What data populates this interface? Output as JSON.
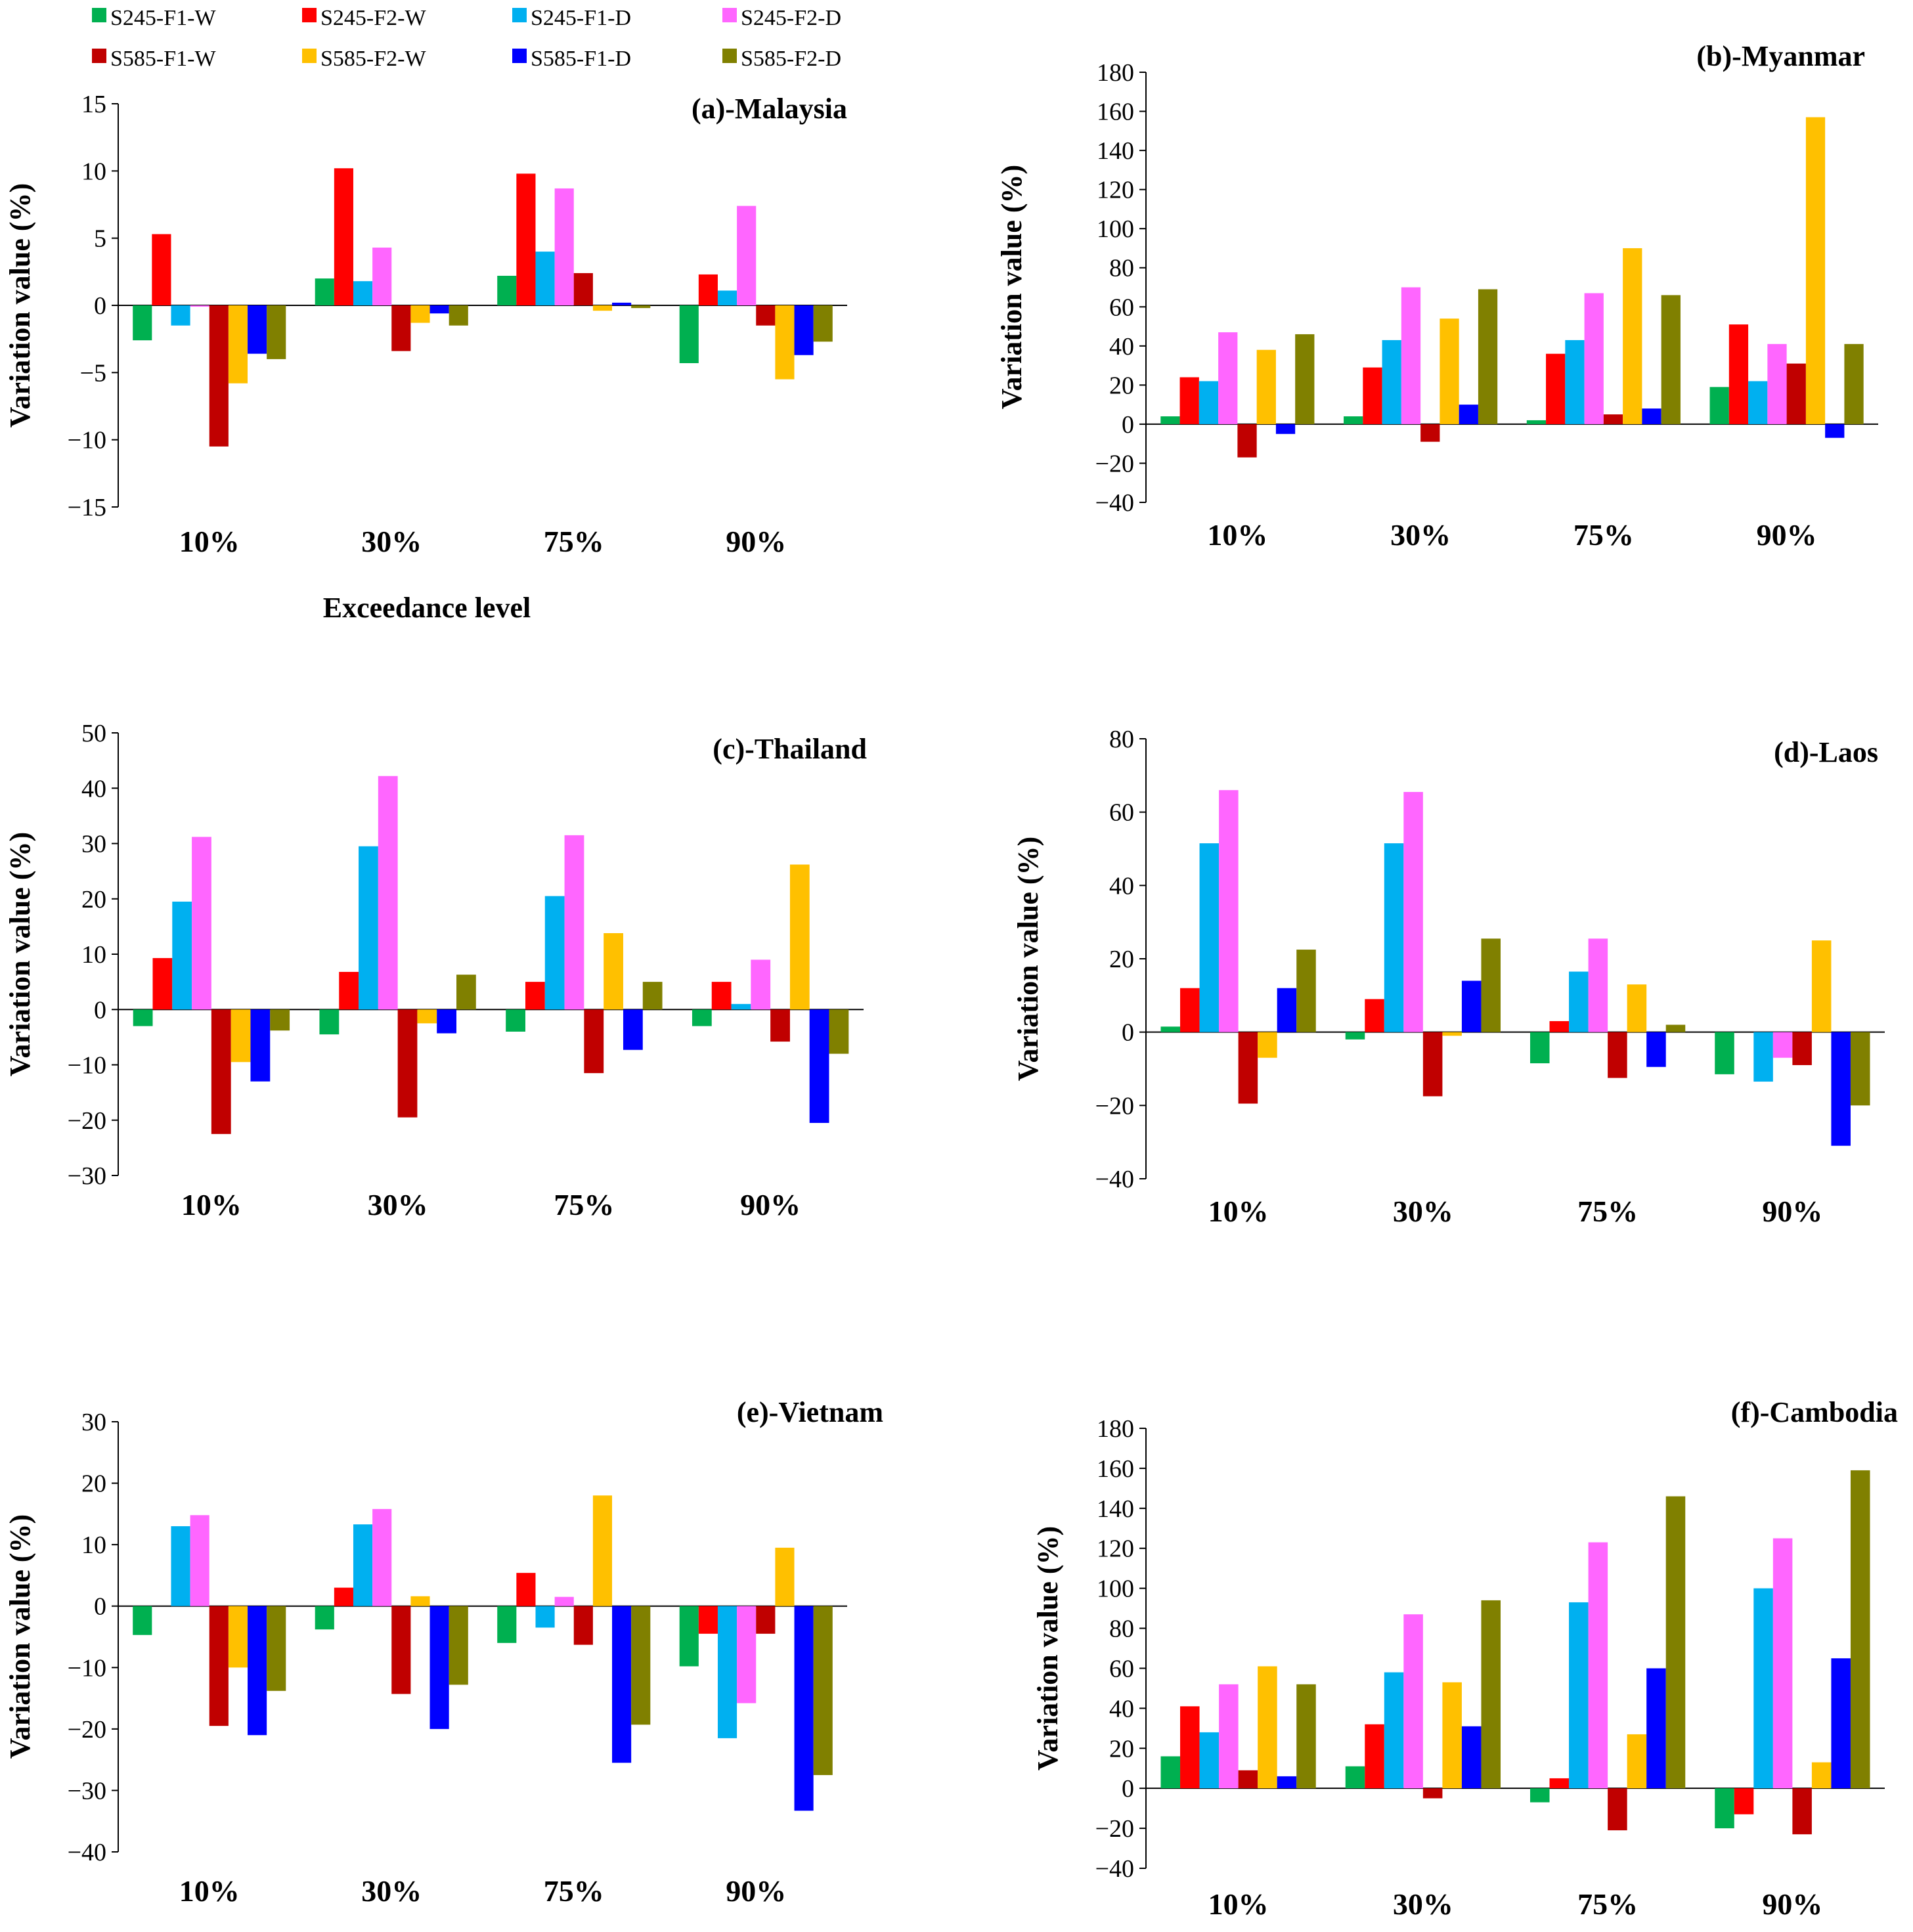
{
  "legend": [
    {
      "name": "S245-F1-W",
      "color": "#00b050"
    },
    {
      "name": "S245-F2-W",
      "color": "#ff0000"
    },
    {
      "name": "S245-F1-D",
      "color": "#00b0f0"
    },
    {
      "name": "S245-F2-D",
      "color": "#ff66ff"
    },
    {
      "name": "S585-F1-W",
      "color": "#c00000"
    },
    {
      "name": "S585-F2-W",
      "color": "#ffc000"
    },
    {
      "name": "S585-F1-D",
      "color": "#0000ff"
    },
    {
      "name": "S585-F2-D",
      "color": "#808000"
    }
  ],
  "chart_data": [
    {
      "type": "bar",
      "title": "(a)-Malaysia",
      "xlabel": "Exceedance level",
      "ylabel": "Variation value (%)",
      "ylim": [
        -15,
        15
      ],
      "yticks": [
        -15,
        -10,
        -5,
        0,
        5,
        10,
        15
      ],
      "categories": [
        "10%",
        "30%",
        "75%",
        "90%"
      ],
      "series": [
        {
          "name": "S245-F1-W",
          "values": [
            -2.6,
            2.0,
            2.2,
            -4.3
          ]
        },
        {
          "name": "S245-F2-W",
          "values": [
            5.3,
            10.2,
            9.8,
            2.3
          ]
        },
        {
          "name": "S245-F1-D",
          "values": [
            -1.5,
            1.8,
            4.0,
            1.1
          ]
        },
        {
          "name": "S245-F2-D",
          "values": [
            -0.1,
            4.3,
            8.7,
            7.4
          ]
        },
        {
          "name": "S585-F1-W",
          "values": [
            -10.5,
            -3.4,
            2.4,
            -1.5
          ]
        },
        {
          "name": "S585-F2-W",
          "values": [
            -5.8,
            -1.3,
            -0.4,
            -5.5
          ]
        },
        {
          "name": "S585-F1-D",
          "values": [
            -3.6,
            -0.6,
            0.2,
            -3.7
          ]
        },
        {
          "name": "S585-F2-D",
          "values": [
            -4.0,
            -1.5,
            -0.2,
            -2.7
          ]
        }
      ]
    },
    {
      "type": "bar",
      "title": "(b)-Myanmar",
      "xlabel": "",
      "ylabel": "Variation value (%)",
      "ylim": [
        -40,
        180
      ],
      "yticks": [
        -40,
        -20,
        0,
        20,
        40,
        60,
        80,
        100,
        120,
        140,
        160,
        180
      ],
      "categories": [
        "10%",
        "30%",
        "75%",
        "90%"
      ],
      "series": [
        {
          "name": "S245-F1-W",
          "values": [
            4,
            4,
            2,
            19
          ]
        },
        {
          "name": "S245-F2-W",
          "values": [
            24,
            29,
            36,
            51
          ]
        },
        {
          "name": "S245-F1-D",
          "values": [
            22,
            43,
            43,
            22
          ]
        },
        {
          "name": "S245-F2-D",
          "values": [
            47,
            70,
            67,
            41
          ]
        },
        {
          "name": "S585-F1-W",
          "values": [
            -17,
            -9,
            5,
            31
          ]
        },
        {
          "name": "S585-F2-W",
          "values": [
            38,
            54,
            90,
            157
          ]
        },
        {
          "name": "S585-F1-D",
          "values": [
            -5,
            10,
            8,
            -7
          ]
        },
        {
          "name": "S585-F2-D",
          "values": [
            46,
            69,
            66,
            41
          ]
        }
      ]
    },
    {
      "type": "bar",
      "title": "(c)-Thailand",
      "xlabel": "",
      "ylabel": "Variation value (%)",
      "ylim": [
        -30,
        50
      ],
      "yticks": [
        -30,
        -20,
        -10,
        0,
        10,
        20,
        30,
        40,
        50
      ],
      "categories": [
        "10%",
        "30%",
        "75%",
        "90%"
      ],
      "series": [
        {
          "name": "S245-F1-W",
          "values": [
            -3,
            -4.5,
            -4,
            -3
          ]
        },
        {
          "name": "S245-F2-W",
          "values": [
            9.3,
            6.8,
            5.0,
            5.0
          ]
        },
        {
          "name": "S245-F1-D",
          "values": [
            19.5,
            29.5,
            20.5,
            1.0
          ]
        },
        {
          "name": "S245-F2-D",
          "values": [
            31.2,
            42.2,
            31.5,
            9.0
          ]
        },
        {
          "name": "S585-F1-W",
          "values": [
            -22.5,
            -19.5,
            -11.5,
            -5.8
          ]
        },
        {
          "name": "S585-F2-W",
          "values": [
            -9.5,
            -2.5,
            13.8,
            26.2
          ]
        },
        {
          "name": "S585-F1-D",
          "values": [
            -13.0,
            -4.3,
            -7.3,
            -20.5
          ]
        },
        {
          "name": "S585-F2-D",
          "values": [
            -3.8,
            6.3,
            5.0,
            -8.0
          ]
        }
      ]
    },
    {
      "type": "bar",
      "title": "(d)-Laos",
      "xlabel": "",
      "ylabel": "Variation value (%)",
      "ylim": [
        -40,
        80
      ],
      "yticks": [
        -40,
        -20,
        0,
        20,
        40,
        60,
        80
      ],
      "categories": [
        "10%",
        "30%",
        "75%",
        "90%"
      ],
      "series": [
        {
          "name": "S245-F1-W",
          "values": [
            1.5,
            -2,
            -8.5,
            -11.5
          ]
        },
        {
          "name": "S245-F2-W",
          "values": [
            12,
            9,
            3,
            0
          ]
        },
        {
          "name": "S245-F1-D",
          "values": [
            51.5,
            51.5,
            16.5,
            -13.5
          ]
        },
        {
          "name": "S245-F2-D",
          "values": [
            66,
            65.5,
            25.5,
            -7
          ]
        },
        {
          "name": "S585-F1-W",
          "values": [
            -19.5,
            -17.5,
            -12.5,
            -9
          ]
        },
        {
          "name": "S585-F2-W",
          "values": [
            -7,
            -1,
            13,
            25
          ]
        },
        {
          "name": "S585-F1-D",
          "values": [
            12,
            14,
            -9.5,
            -31
          ]
        },
        {
          "name": "S585-F2-D",
          "values": [
            22.5,
            25.5,
            2,
            -20
          ]
        }
      ]
    },
    {
      "type": "bar",
      "title": "(e)-Vietnam",
      "xlabel": "",
      "ylabel": "Variation value (%)",
      "ylim": [
        -40,
        30
      ],
      "yticks": [
        -40,
        -30,
        -20,
        -10,
        0,
        10,
        20,
        30
      ],
      "categories": [
        "10%",
        "30%",
        "75%",
        "90%"
      ],
      "series": [
        {
          "name": "S245-F1-W",
          "values": [
            -4.7,
            -3.8,
            -6.0,
            -9.8
          ]
        },
        {
          "name": "S245-F2-W",
          "values": [
            0,
            3.0,
            5.4,
            -4.5
          ]
        },
        {
          "name": "S245-F1-D",
          "values": [
            13.0,
            13.3,
            -3.5,
            -21.5
          ]
        },
        {
          "name": "S245-F2-D",
          "values": [
            14.8,
            15.8,
            1.5,
            -15.8
          ]
        },
        {
          "name": "S585-F1-W",
          "values": [
            -19.5,
            -14.3,
            -6.3,
            -4.5
          ]
        },
        {
          "name": "S585-F2-W",
          "values": [
            -10.0,
            1.6,
            18.0,
            9.5
          ]
        },
        {
          "name": "S585-F1-D",
          "values": [
            -21.0,
            -20.0,
            -25.5,
            -33.3
          ]
        },
        {
          "name": "S585-F2-D",
          "values": [
            -13.8,
            -12.8,
            -19.3,
            -27.5
          ]
        }
      ]
    },
    {
      "type": "bar",
      "title": "(f)-Cambodia",
      "xlabel": "",
      "ylabel": "Variation value (%)",
      "ylim": [
        -40,
        180
      ],
      "yticks": [
        -40,
        -20,
        0,
        20,
        40,
        60,
        80,
        100,
        120,
        140,
        160,
        180
      ],
      "categories": [
        "10%",
        "30%",
        "75%",
        "90%"
      ],
      "series": [
        {
          "name": "S245-F1-W",
          "values": [
            16,
            11,
            -7,
            -20
          ]
        },
        {
          "name": "S245-F2-W",
          "values": [
            41,
            32,
            5,
            -13
          ]
        },
        {
          "name": "S245-F1-D",
          "values": [
            28,
            58,
            93,
            100
          ]
        },
        {
          "name": "S245-F2-D",
          "values": [
            52,
            87,
            123,
            125
          ]
        },
        {
          "name": "S585-F1-W",
          "values": [
            9,
            -5,
            -21,
            -23
          ]
        },
        {
          "name": "S585-F2-W",
          "values": [
            61,
            53,
            27,
            13
          ]
        },
        {
          "name": "S585-F1-D",
          "values": [
            6,
            31,
            60,
            65
          ]
        },
        {
          "name": "S585-F2-D",
          "values": [
            52,
            94,
            146,
            159
          ]
        }
      ]
    }
  ]
}
